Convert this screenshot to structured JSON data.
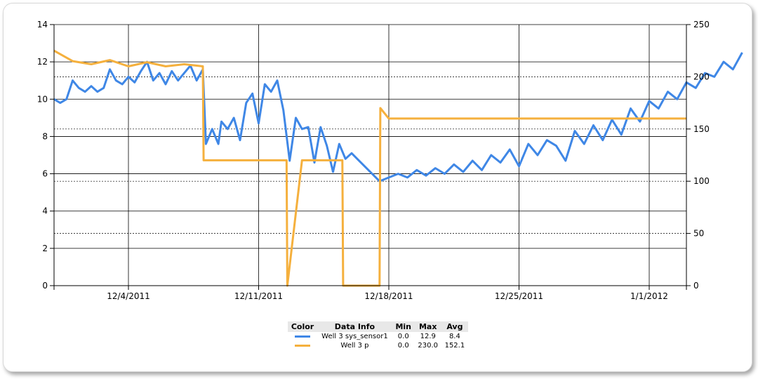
{
  "chart_data": {
    "type": "line",
    "x_ticks": [
      {
        "date": "2011-12-04",
        "label": "12/4/2011"
      },
      {
        "date": "2011-12-11",
        "label": "12/11/2011"
      },
      {
        "date": "2011-12-18",
        "label": "12/18/2011"
      },
      {
        "date": "2011-12-25",
        "label": "12/25/2011"
      },
      {
        "date": "2012-01-01",
        "label": "1/1/2012"
      }
    ],
    "xlim": [
      "2011-11-30",
      "2012-01-03"
    ],
    "y_left": {
      "lim": [
        0,
        14
      ],
      "ticks": [
        0,
        2,
        4,
        6,
        8,
        10,
        12,
        14
      ]
    },
    "y_right": {
      "lim": [
        0,
        250
      ],
      "ticks": [
        0,
        50,
        100,
        150,
        200,
        250
      ]
    },
    "grid": true,
    "legend_position": "bottom",
    "series": [
      {
        "name": "Well 3 sys_sensor1",
        "color": "#3f87e6",
        "axis": "left",
        "points": [
          [
            "2011-11-30",
            10.0
          ],
          [
            "2011-11-30T08",
            9.8
          ],
          [
            "2011-11-30T16",
            10.0
          ],
          [
            "2011-12-01",
            11.0
          ],
          [
            "2011-12-01T08",
            10.6
          ],
          [
            "2011-12-01T16",
            10.4
          ],
          [
            "2011-12-02",
            10.7
          ],
          [
            "2011-12-02T08",
            10.4
          ],
          [
            "2011-12-02T16",
            10.6
          ],
          [
            "2011-12-03",
            11.6
          ],
          [
            "2011-12-03T08",
            11.0
          ],
          [
            "2011-12-03T16",
            10.8
          ],
          [
            "2011-12-04",
            11.2
          ],
          [
            "2011-12-04T08",
            10.9
          ],
          [
            "2011-12-04T16",
            11.5
          ],
          [
            "2011-12-05",
            12.0
          ],
          [
            "2011-12-05T08",
            11.0
          ],
          [
            "2011-12-05T16",
            11.4
          ],
          [
            "2011-12-06",
            10.8
          ],
          [
            "2011-12-06T08",
            11.5
          ],
          [
            "2011-12-06T16",
            11.0
          ],
          [
            "2011-12-07",
            11.4
          ],
          [
            "2011-12-07T08",
            11.8
          ],
          [
            "2011-12-07T16",
            11.0
          ],
          [
            "2011-12-08",
            11.6
          ],
          [
            "2011-12-08T04",
            7.6
          ],
          [
            "2011-12-08T12",
            8.4
          ],
          [
            "2011-12-08T20",
            7.6
          ],
          [
            "2011-12-09",
            8.8
          ],
          [
            "2011-12-09T08",
            8.4
          ],
          [
            "2011-12-09T16",
            9.0
          ],
          [
            "2011-12-10",
            7.8
          ],
          [
            "2011-12-10T08",
            9.8
          ],
          [
            "2011-12-10T16",
            10.3
          ],
          [
            "2011-12-11",
            8.7
          ],
          [
            "2011-12-11T08",
            10.8
          ],
          [
            "2011-12-11T16",
            10.4
          ],
          [
            "2011-12-12",
            11.0
          ],
          [
            "2011-12-12T08",
            9.4
          ],
          [
            "2011-12-12T16",
            6.7
          ],
          [
            "2011-12-13",
            9.0
          ],
          [
            "2011-12-13T08",
            8.4
          ],
          [
            "2011-12-13T16",
            8.5
          ],
          [
            "2011-12-14",
            6.6
          ],
          [
            "2011-12-14T08",
            8.5
          ],
          [
            "2011-12-14T16",
            7.5
          ],
          [
            "2011-12-15",
            6.1
          ],
          [
            "2011-12-15T08",
            7.6
          ],
          [
            "2011-12-15T16",
            6.8
          ],
          [
            "2011-12-16",
            7.1
          ],
          [
            "2011-12-17T12",
            5.6
          ],
          [
            "2011-12-18",
            5.8
          ],
          [
            "2011-12-18T12",
            6.0
          ],
          [
            "2011-12-19",
            5.8
          ],
          [
            "2011-12-19T12",
            6.2
          ],
          [
            "2011-12-20",
            5.9
          ],
          [
            "2011-12-20T12",
            6.3
          ],
          [
            "2011-12-21",
            6.0
          ],
          [
            "2011-12-21T12",
            6.5
          ],
          [
            "2011-12-22",
            6.1
          ],
          [
            "2011-12-22T12",
            6.7
          ],
          [
            "2011-12-23",
            6.2
          ],
          [
            "2011-12-23T12",
            7.0
          ],
          [
            "2011-12-24",
            6.6
          ],
          [
            "2011-12-24T12",
            7.3
          ],
          [
            "2011-12-25",
            6.4
          ],
          [
            "2011-12-25T12",
            7.6
          ],
          [
            "2011-12-26",
            7.0
          ],
          [
            "2011-12-26T12",
            7.8
          ],
          [
            "2011-12-27",
            7.5
          ],
          [
            "2011-12-27T12",
            6.7
          ],
          [
            "2011-12-28",
            8.3
          ],
          [
            "2011-12-28T12",
            7.6
          ],
          [
            "2011-12-29",
            8.6
          ],
          [
            "2011-12-29T12",
            7.8
          ],
          [
            "2011-12-30",
            8.9
          ],
          [
            "2011-12-30T12",
            8.1
          ],
          [
            "2011-12-31",
            9.5
          ],
          [
            "2011-12-31T12",
            8.8
          ],
          [
            "2012-01-01",
            9.9
          ],
          [
            "2012-01-01T12",
            9.5
          ],
          [
            "2012-01-02",
            10.4
          ],
          [
            "2012-01-02T12",
            10.0
          ],
          [
            "2012-01-03",
            10.9
          ],
          [
            "2012-01-03T12",
            10.6
          ],
          [
            "2012-01-04",
            11.4
          ],
          [
            "2012-01-04T12",
            11.2
          ],
          [
            "2012-01-05",
            12.0
          ],
          [
            "2012-01-05T12",
            11.6
          ],
          [
            "2012-01-06",
            12.5
          ]
        ]
      },
      {
        "name": "Well 3 p",
        "color": "#f5b03d",
        "axis": "right",
        "points": [
          [
            "2011-11-30",
            225
          ],
          [
            "2011-12-01",
            215
          ],
          [
            "2011-12-02",
            212
          ],
          [
            "2011-12-03",
            216
          ],
          [
            "2011-12-04",
            210
          ],
          [
            "2011-12-05",
            214
          ],
          [
            "2011-12-06",
            210
          ],
          [
            "2011-12-07",
            212
          ],
          [
            "2011-12-08",
            210
          ],
          [
            "2011-12-08T01",
            120
          ],
          [
            "2011-12-11",
            120
          ],
          [
            "2011-12-12T12",
            120
          ],
          [
            "2011-12-12T13",
            0
          ],
          [
            "2011-12-13T08",
            120
          ],
          [
            "2011-12-15T12",
            120
          ],
          [
            "2011-12-15T13",
            0
          ],
          [
            "2011-12-17T12",
            0
          ],
          [
            "2011-12-17T13",
            170
          ],
          [
            "2011-12-18",
            160
          ],
          [
            "2011-12-25",
            160
          ],
          [
            "2012-01-03",
            160
          ]
        ]
      }
    ]
  },
  "legend": {
    "headers": {
      "color": "Color",
      "info": "Data Info",
      "min": "Min",
      "max": "Max",
      "avg": "Avg"
    },
    "rows": [
      {
        "color": "#3f87e6",
        "info": "Well 3 sys_sensor1",
        "min": "0.0",
        "max": "12.9",
        "avg": "8.4"
      },
      {
        "color": "#f5b03d",
        "info": "Well 3 p",
        "min": "0.0",
        "max": "230.0",
        "avg": "152.1"
      }
    ]
  }
}
